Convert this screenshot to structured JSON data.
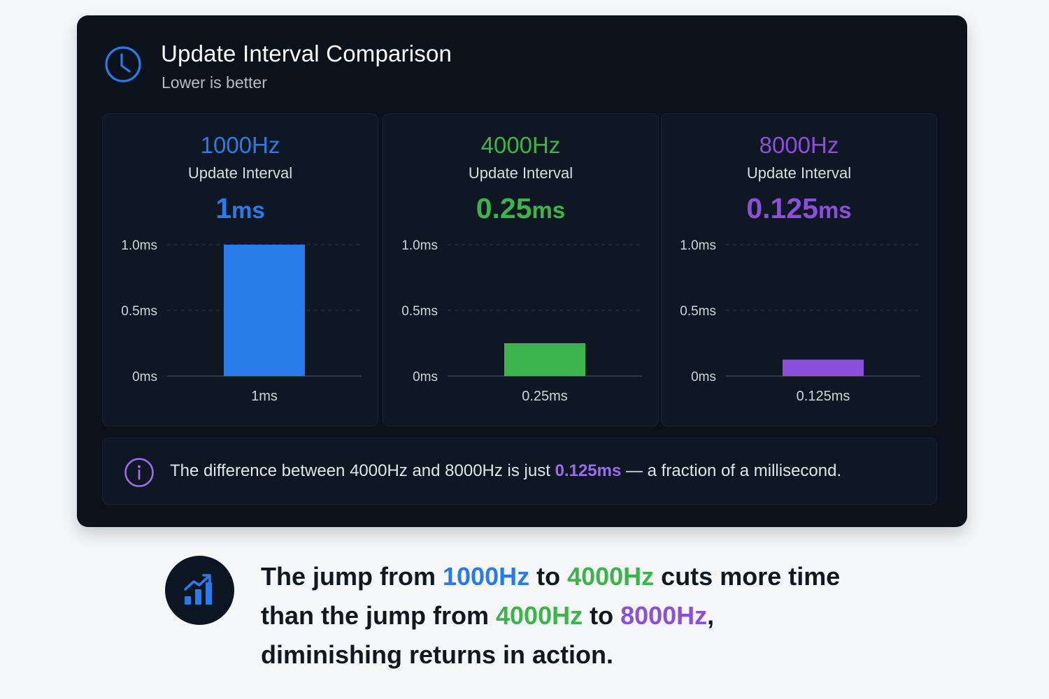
{
  "header": {
    "title": "Update Interval Comparison",
    "subtitle": "Lower is better",
    "icon": "clock-icon"
  },
  "colors": {
    "blue": "#2a7bea",
    "green": "#3bb54a",
    "purple": "#8b4fdc",
    "card_bg": "#0b121b"
  },
  "panels": [
    {
      "hz": "1000Hz",
      "label": "Update Interval",
      "value": "1",
      "unit": "ms"
    },
    {
      "hz": "4000Hz",
      "label": "Update Interval",
      "value": "0.25",
      "unit": "ms"
    },
    {
      "hz": "8000Hz",
      "label": "Update Interval",
      "value": "0.125",
      "unit": "ms"
    }
  ],
  "chart_data": [
    {
      "type": "bar",
      "categories": [
        "1ms"
      ],
      "values": [
        1
      ],
      "ylim": [
        0,
        1
      ],
      "yticks": [
        "0ms",
        "0.5ms",
        "1.0ms"
      ],
      "grid": true,
      "color": "#2a7bea"
    },
    {
      "type": "bar",
      "categories": [
        "0.25ms"
      ],
      "values": [
        0.25
      ],
      "ylim": [
        0,
        1
      ],
      "yticks": [
        "0ms",
        "0.5ms",
        "1.0ms"
      ],
      "grid": true,
      "color": "#3bb54a"
    },
    {
      "type": "bar",
      "categories": [
        "0.125ms"
      ],
      "values": [
        0.125
      ],
      "ylim": [
        0,
        1
      ],
      "yticks": [
        "0ms",
        "0.5ms",
        "1.0ms"
      ],
      "grid": true,
      "color": "#8b4fdc"
    }
  ],
  "info": {
    "icon": "info-icon",
    "text_before": "The difference between 4000Hz and 8000Hz is just ",
    "highlight": "0.125ms",
    "text_after": " — a fraction of a millisecond."
  },
  "footer": {
    "icon": "chart-trend-icon",
    "line1_a": "The jump from ",
    "line1_hz1": "1000Hz",
    "line1_b": " to ",
    "line1_hz2": "4000Hz",
    "line1_c": " cuts more time",
    "line2_a": "than the jump from ",
    "line2_hz1": "4000Hz",
    "line2_b": " to ",
    "line2_hz2": "8000Hz",
    "line2_c": ",",
    "line3": "diminishing returns in action."
  }
}
